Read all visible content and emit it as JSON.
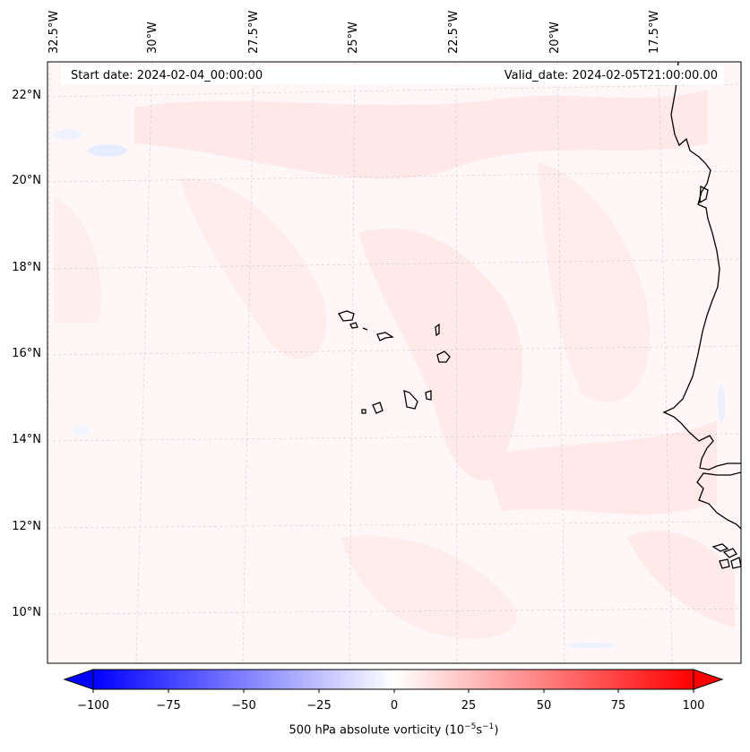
{
  "header": {
    "start_date": "Start date: 2024-02-04_00:00:00",
    "valid_date": "Valid_date: 2024-02-05T21:00:00.00"
  },
  "axes": {
    "lat_labels": [
      "22°N",
      "20°N",
      "18°N",
      "16°N",
      "14°N",
      "12°N",
      "10°N"
    ],
    "lon_labels": [
      "32.5°W",
      "30°W",
      "27.5°W",
      "25°W",
      "22.5°W",
      "20°W",
      "17.5°W"
    ],
    "gridlines": true
  },
  "colorbar": {
    "label_prefix": "500 hPa absolute vorticity (10",
    "label_exp1": "−5",
    "label_mid": "s",
    "label_exp2": "−1",
    "label_suffix": ")",
    "ticks": [
      "−100",
      "−75",
      "−50",
      "−25",
      "0",
      "25",
      "50",
      "75",
      "100"
    ],
    "range": [
      -100,
      100
    ],
    "colormap": "bwr",
    "min_color": "#0000ff",
    "mid_color": "#ffffff",
    "max_color": "#ff0000",
    "extend": "both"
  },
  "map": {
    "background_color": "#fff7f7",
    "field_color_light": "#ffe6e6",
    "coastline_color": "#000000"
  }
}
